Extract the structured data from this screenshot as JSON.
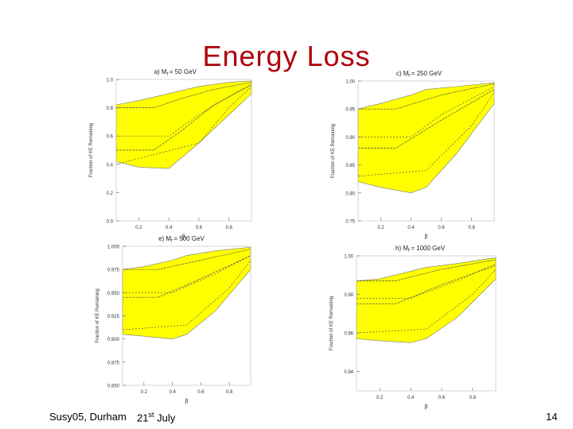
{
  "slide": {
    "title": "Energy Loss",
    "footer_left": "Susy05, Durham",
    "footer_date_day": "21",
    "footer_date_suffix": "st",
    "footer_date_month": "July",
    "page_number": "14"
  },
  "colors": {
    "title": "#b0000a",
    "band": "#ffff00",
    "line": "#555555"
  },
  "chart_data": [
    {
      "id": "a",
      "type": "area",
      "title": "a)  M",
      "title_sub": "̃l",
      "title_value": "=  50  GeV",
      "xlabel": "β",
      "ylabel": "Fraction of KE Remaining",
      "xlim": [
        0.05,
        0.95
      ],
      "ylim": [
        0.0,
        1.0
      ],
      "yticks": [
        "1.0",
        "0.8",
        "0.6",
        "0.4",
        "0.2",
        "0.0"
      ],
      "yticks_values": [
        1.0,
        0.8,
        0.6,
        0.4,
        0.2,
        0.0
      ],
      "xticks": [
        "0.2",
        "0.4",
        "0.6",
        "0.8"
      ],
      "xticks_values": [
        0.2,
        0.4,
        0.6,
        0.8
      ],
      "band": {
        "x": [
          0.05,
          0.2,
          0.4,
          0.6,
          0.8,
          0.95
        ],
        "upper": [
          0.82,
          0.85,
          0.9,
          0.95,
          0.98,
          0.99
        ],
        "lower": [
          0.42,
          0.38,
          0.37,
          0.55,
          0.75,
          0.9
        ]
      },
      "curves": [
        {
          "x": [
            0.05,
            0.3,
            0.5,
            0.7,
            0.95
          ],
          "y": [
            0.8,
            0.8,
            0.87,
            0.93,
            0.98
          ]
        },
        {
          "x": [
            0.05,
            0.4,
            0.6,
            0.8,
            0.95
          ],
          "y": [
            0.6,
            0.6,
            0.75,
            0.88,
            0.97
          ]
        },
        {
          "x": [
            0.05,
            0.3,
            0.5,
            0.7,
            0.95
          ],
          "y": [
            0.5,
            0.5,
            0.65,
            0.82,
            0.96
          ]
        },
        {
          "x": [
            0.05,
            0.6,
            0.8,
            0.95
          ],
          "y": [
            0.4,
            0.55,
            0.8,
            0.95
          ]
        }
      ]
    },
    {
      "id": "c",
      "type": "area",
      "title": "c)  M",
      "title_sub": "̃l",
      "title_value": "=  250  GeV",
      "xlabel": "β",
      "ylabel": "Fraction of KE Remaining",
      "xlim": [
        0.05,
        0.95
      ],
      "ylim": [
        0.75,
        1.0
      ],
      "yticks": [
        "1.00",
        "0.95",
        "0.90",
        "0.85",
        "0.80",
        "0.75"
      ],
      "yticks_values": [
        1.0,
        0.95,
        0.9,
        0.85,
        0.8,
        0.75
      ],
      "xticks": [
        "0.2",
        "0.4",
        "0.6",
        "0.8"
      ],
      "xticks_values": [
        0.2,
        0.4,
        0.6,
        0.8
      ],
      "band": {
        "x": [
          0.05,
          0.2,
          0.4,
          0.5,
          0.7,
          0.95
        ],
        "upper": [
          0.95,
          0.96,
          0.975,
          0.985,
          0.99,
          0.997
        ],
        "lower": [
          0.82,
          0.81,
          0.8,
          0.81,
          0.87,
          0.96
        ]
      },
      "curves": [
        {
          "x": [
            0.05,
            0.3,
            0.6,
            0.95
          ],
          "y": [
            0.95,
            0.95,
            0.975,
            0.995
          ]
        },
        {
          "x": [
            0.05,
            0.4,
            0.6,
            0.95
          ],
          "y": [
            0.9,
            0.9,
            0.94,
            0.99
          ]
        },
        {
          "x": [
            0.05,
            0.3,
            0.6,
            0.95
          ],
          "y": [
            0.88,
            0.88,
            0.93,
            0.985
          ]
        },
        {
          "x": [
            0.05,
            0.5,
            0.8,
            0.95
          ],
          "y": [
            0.83,
            0.84,
            0.92,
            0.98
          ]
        }
      ]
    },
    {
      "id": "e",
      "type": "area",
      "title": "e)  M",
      "title_sub": "̃l",
      "title_value": "=  500  GeV",
      "xlabel": "β",
      "ylabel": "Fraction of KE Remaining",
      "xlim": [
        0.05,
        0.95
      ],
      "ylim": [
        0.85,
        1.0
      ],
      "yticks": [
        "1.000",
        "0.975",
        "0.950",
        "0.925",
        "0.900",
        "0.875",
        "0.850"
      ],
      "yticks_values": [
        1.0,
        0.975,
        0.95,
        0.925,
        0.9,
        0.875,
        0.85
      ],
      "xticks": [
        "0.2",
        "0.4",
        "0.6",
        "0.8"
      ],
      "xticks_values": [
        0.2,
        0.4,
        0.6,
        0.8
      ],
      "band": {
        "x": [
          0.05,
          0.2,
          0.4,
          0.5,
          0.7,
          0.95
        ],
        "upper": [
          0.975,
          0.978,
          0.985,
          0.99,
          0.995,
          0.999
        ],
        "lower": [
          0.905,
          0.903,
          0.9,
          0.905,
          0.93,
          0.975
        ]
      },
      "curves": [
        {
          "x": [
            0.05,
            0.3,
            0.6,
            0.95
          ],
          "y": [
            0.975,
            0.975,
            0.985,
            0.997
          ]
        },
        {
          "x": [
            0.05,
            0.4,
            0.7,
            0.95
          ],
          "y": [
            0.95,
            0.95,
            0.97,
            0.99
          ]
        },
        {
          "x": [
            0.05,
            0.3,
            0.6,
            0.95
          ],
          "y": [
            0.945,
            0.945,
            0.965,
            0.99
          ]
        },
        {
          "x": [
            0.05,
            0.5,
            0.8,
            0.95
          ],
          "y": [
            0.91,
            0.915,
            0.955,
            0.985
          ]
        }
      ]
    },
    {
      "id": "h",
      "type": "area",
      "title": "h)  M",
      "title_sub": "̃l",
      "title_value": "=  1000  GeV",
      "xlabel": "β",
      "ylabel": "Fraction of KE Remaining",
      "xlim": [
        0.05,
        0.95
      ],
      "ylim": [
        0.93,
        1.0
      ],
      "yticks": [
        "1.00",
        "0.98",
        "0.96",
        "0.94"
      ],
      "yticks_values": [
        1.0,
        0.98,
        0.96,
        0.94
      ],
      "xticks": [
        "0.2",
        "0.4",
        "0.6",
        "0.8"
      ],
      "xticks_values": [
        0.2,
        0.4,
        0.6,
        0.8
      ],
      "band": {
        "x": [
          0.05,
          0.2,
          0.4,
          0.5,
          0.7,
          0.95
        ],
        "upper": [
          0.987,
          0.988,
          0.992,
          0.994,
          0.996,
          0.999
        ],
        "lower": [
          0.957,
          0.956,
          0.955,
          0.957,
          0.968,
          0.988
        ]
      },
      "curves": [
        {
          "x": [
            0.05,
            0.3,
            0.6,
            0.95
          ],
          "y": [
            0.987,
            0.987,
            0.993,
            0.998
          ]
        },
        {
          "x": [
            0.05,
            0.4,
            0.7,
            0.95
          ],
          "y": [
            0.978,
            0.978,
            0.987,
            0.996
          ]
        },
        {
          "x": [
            0.05,
            0.3,
            0.6,
            0.95
          ],
          "y": [
            0.975,
            0.975,
            0.985,
            0.995
          ]
        },
        {
          "x": [
            0.05,
            0.5,
            0.8,
            0.95
          ],
          "y": [
            0.96,
            0.962,
            0.98,
            0.993
          ]
        }
      ]
    }
  ]
}
